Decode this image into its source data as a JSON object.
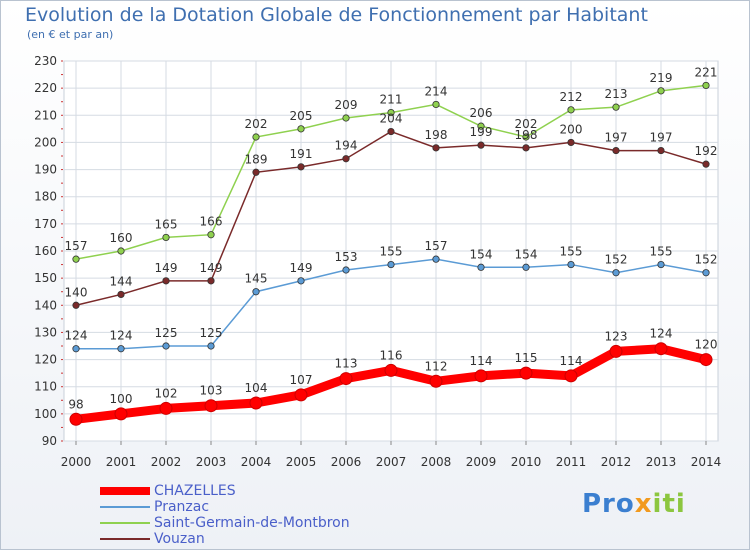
{
  "title": "Evolution de la Dotation Globale de Fonctionnement par Habitant",
  "subtitle": "(en € et par an)",
  "logo": {
    "part1": "Pro",
    "part2": "x",
    "part3": "iti"
  },
  "chart_data": {
    "type": "line",
    "title": "Evolution de la Dotation Globale de Fonctionnement par Habitant",
    "subtitle": "(en € et par an)",
    "xlabel": "",
    "ylabel": "",
    "ylim": [
      90,
      230
    ],
    "yticks": [
      90,
      100,
      110,
      120,
      130,
      140,
      150,
      160,
      170,
      180,
      190,
      200,
      210,
      220,
      230
    ],
    "grid": true,
    "legend_position": "bottom-left",
    "categories": [
      "2000",
      "2001",
      "2002",
      "2003",
      "2004",
      "2005",
      "2006",
      "2007",
      "2008",
      "2009",
      "2010",
      "2011",
      "2012",
      "2013",
      "2014"
    ],
    "series": [
      {
        "name": "Saint-Germain-de-Montbron",
        "color": "#8fd14f",
        "values": [
          157,
          160,
          165,
          166,
          202,
          205,
          209,
          211,
          214,
          206,
          202,
          212,
          213,
          219,
          221
        ]
      },
      {
        "name": "Vouzan",
        "color": "#7a2a2a",
        "values": [
          140,
          144,
          149,
          149,
          189,
          191,
          194,
          204,
          198,
          199,
          198,
          200,
          197,
          197,
          192
        ]
      },
      {
        "name": "Pranzac",
        "color": "#5b9bd5",
        "values": [
          124,
          124,
          125,
          125,
          145,
          149,
          153,
          155,
          157,
          154,
          154,
          155,
          152,
          155,
          152
        ]
      },
      {
        "name": "CHAZELLES",
        "color": "#ff0000",
        "values": [
          98,
          100,
          102,
          103,
          104,
          107,
          113,
          116,
          112,
          114,
          115,
          114,
          123,
          124,
          120
        ]
      }
    ],
    "legend_order": [
      "CHAZELLES",
      "Pranzac",
      "Saint-Germain-de-Montbron",
      "Vouzan"
    ]
  }
}
